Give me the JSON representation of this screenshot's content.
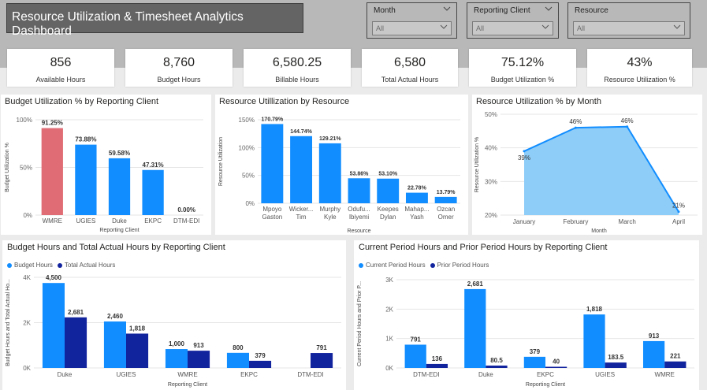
{
  "header": {
    "title": "Resource Utilization & Timesheet Analytics Dashboard"
  },
  "filters": [
    {
      "label": "Month",
      "value": "All"
    },
    {
      "label": "Reporting Client",
      "value": "All"
    },
    {
      "label": "Resource",
      "value": "All"
    }
  ],
  "kpis": [
    {
      "value": "856",
      "label": "Available Hours"
    },
    {
      "value": "8,760",
      "label": "Budget Hours"
    },
    {
      "value": "6,580.25",
      "label": "Billable Hours"
    },
    {
      "value": "6,580",
      "label": "Total Actual Hours"
    },
    {
      "value": "75.12%",
      "label": "Budget Utilization %"
    },
    {
      "value": "43%",
      "label": "Resource Utilization %"
    }
  ],
  "colors": {
    "blue": "#118dff",
    "navy": "#12239e",
    "highlight": "#e06c75",
    "area": "#8ecdf8"
  },
  "chart_data": [
    {
      "type": "bar",
      "title": "Budget Utilization % by Reporting Client",
      "xlabel": "Reporting Client",
      "ylabel": "Budget Utilization %",
      "categories": [
        "WMRE",
        "UGIES",
        "Duke",
        "EKPC",
        "DTM-EDI"
      ],
      "values": [
        91.25,
        73.88,
        59.58,
        47.31,
        0
      ],
      "value_labels": [
        "91.25%",
        "73.88%",
        "59.58%",
        "47.31%",
        "0.00%"
      ],
      "yticks": [
        "0%",
        "50%",
        "100%"
      ],
      "ylim": [
        0,
        100
      ],
      "highlight_index": 0
    },
    {
      "type": "bar",
      "title": "Resource Utillization by Resource",
      "xlabel": "Resource",
      "ylabel": "Resource Utilization",
      "categories": [
        [
          "Mpoyo",
          "Gaston"
        ],
        [
          "Wicker...",
          "Tim"
        ],
        [
          "Murphy",
          "Kyle"
        ],
        [
          "Odufu...",
          "Ibiyemi"
        ],
        [
          "Keepes",
          "Dylan"
        ],
        [
          "Mahap...",
          "Yash"
        ],
        [
          "Ozcan",
          "Omer"
        ]
      ],
      "values": [
        170.79,
        144.74,
        129.21,
        53.86,
        53.1,
        22.78,
        13.79
      ],
      "value_labels": [
        "170.79%",
        "144.74%",
        "129.21%",
        "53.86%",
        "53.10%",
        "22.78%",
        "13.79%"
      ],
      "yticks": [
        "0%",
        "50%",
        "100%",
        "150%"
      ],
      "ylim": [
        0,
        180
      ]
    },
    {
      "type": "area",
      "title": "Resource Utilization % by Month",
      "xlabel": "Month",
      "ylabel": "Resource Utilization %",
      "categories": [
        "January",
        "February",
        "March",
        "April"
      ],
      "values": [
        39,
        46,
        46.3,
        21
      ],
      "value_labels": [
        "39%",
        "46%",
        "46%",
        "21%"
      ],
      "yticks": [
        "20%",
        "30%",
        "40%",
        "50%"
      ],
      "ylim": [
        20,
        50
      ]
    },
    {
      "type": "bar",
      "title": "Budget Hours and Total Actual Hours by Reporting Client",
      "xlabel": "Reporting Client",
      "ylabel": "Budget Hours and Total Actual Ho...",
      "categories": [
        "Duke",
        "UGIES",
        "WMRE",
        "EKPC",
        "DTM-EDI"
      ],
      "series": [
        {
          "name": "Budget Hours",
          "values": [
            4500,
            2460,
            1000,
            800,
            0
          ],
          "value_labels": [
            "4,500",
            "2,460",
            "1,000",
            "800",
            ""
          ]
        },
        {
          "name": "Total Actual Hours",
          "values": [
            2681,
            1818,
            913,
            379,
            791
          ],
          "value_labels": [
            "2,681",
            "1,818",
            "913",
            "379",
            "791"
          ]
        }
      ],
      "yticks": [
        "0K",
        "2K",
        "4K"
      ],
      "ylim": [
        0,
        4800
      ]
    },
    {
      "type": "bar",
      "title": "Current Period Hours and Prior Period Hours by Reporting Client",
      "xlabel": "Reporting Client",
      "ylabel": "Current Period Hours and Prior P...",
      "categories": [
        "DTM-EDI",
        "Duke",
        "EKPC",
        "UGIES",
        "WMRE"
      ],
      "series": [
        {
          "name": "Current Period Hours",
          "values": [
            791,
            2681,
            379,
            1818,
            913
          ],
          "value_labels": [
            "791",
            "2,681",
            "379",
            "1,818",
            "913"
          ]
        },
        {
          "name": "Prior Period Hours",
          "values": [
            136,
            80.5,
            40,
            183.5,
            221
          ],
          "value_labels": [
            "136",
            "80.5",
            "40",
            "183.5",
            "221"
          ]
        }
      ],
      "yticks": [
        "0K",
        "1K",
        "2K",
        "3K"
      ],
      "ylim": [
        0,
        3000
      ]
    }
  ]
}
